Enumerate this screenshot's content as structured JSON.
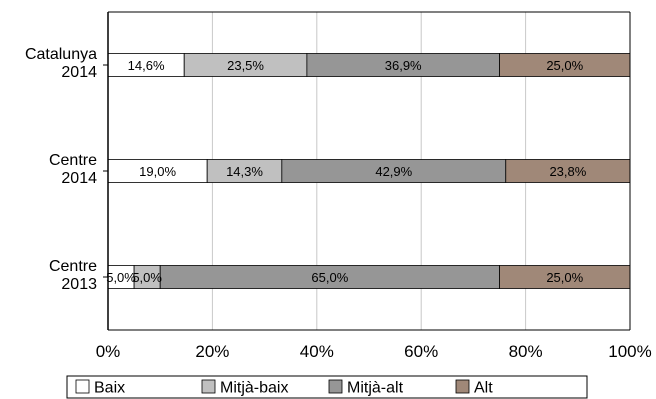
{
  "chart_data": {
    "type": "bar",
    "orientation": "horizontal",
    "stacked": "percent",
    "categories": [
      [
        "Catalunya",
        "2014"
      ],
      [
        "Centre",
        "2014"
      ],
      [
        "Centre",
        "2013"
      ]
    ],
    "series": [
      {
        "name": "Baix",
        "color": "#ffffff",
        "values": [
          14.6,
          19.0,
          5.0
        ],
        "labels": [
          "14,6%",
          "19,0%",
          "5,0%"
        ]
      },
      {
        "name": "Mitjà-baix",
        "color": "#c0c0c0",
        "values": [
          23.5,
          14.3,
          5.0
        ],
        "labels": [
          "23,5%",
          "14,3%",
          "5,0%"
        ]
      },
      {
        "name": "Mitjà-alt",
        "color": "#969696",
        "values": [
          36.9,
          42.9,
          65.0
        ],
        "labels": [
          "36,9%",
          "42,9%",
          "65,0%"
        ]
      },
      {
        "name": "Alt",
        "color": "#a08878",
        "values": [
          25.0,
          23.8,
          25.0
        ],
        "labels": [
          "25,0%",
          "23,8%",
          "25,0%"
        ]
      }
    ],
    "xlim": [
      0,
      100
    ],
    "ticks": [
      "0%",
      "20%",
      "40%",
      "60%",
      "80%",
      "100%"
    ],
    "grid": true,
    "legend_position": "bottom"
  }
}
